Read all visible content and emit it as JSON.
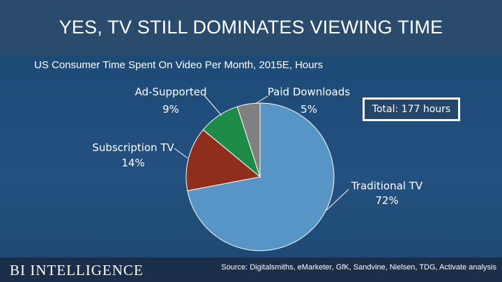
{
  "header": {
    "title": "YES, TV STILL DOMINATES VIEWING TIME"
  },
  "footer": {
    "logo": "BI INTELLIGENCE",
    "source": "Source: Digitalsmiths, eMarketer, GfK, Sandvine, Nielsen, TDG, Activate analysis"
  },
  "colors": {
    "background": "#1f4670",
    "title_bar": "#2b4b6c",
    "footer": "#1b2f4a"
  },
  "chart_data": {
    "type": "pie",
    "title": "US Consumer Time Spent On Video Per Month, 2015E, Hours",
    "annotation": "Total: 177 hours",
    "slices": [
      {
        "name": "Traditional TV",
        "value": 72,
        "label": "72%",
        "color": "#5795c6"
      },
      {
        "name": "Subscription TV",
        "value": 14,
        "label": "14%",
        "color": "#8f2e1c"
      },
      {
        "name": "Ad-Supported",
        "value": 9,
        "label": "9%",
        "color": "#1d8a48"
      },
      {
        "name": "Paid Downloads",
        "value": 5,
        "label": "5%",
        "color": "#808080"
      }
    ]
  }
}
